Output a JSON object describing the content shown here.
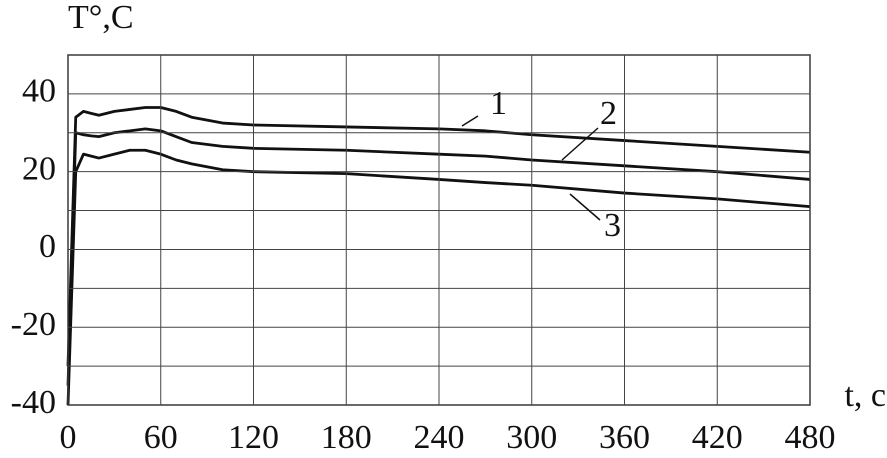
{
  "chart_data": {
    "type": "line",
    "ylabel": "T°,C",
    "xlabel": "t, c",
    "x": [
      0,
      5,
      10,
      15,
      20,
      30,
      40,
      50,
      60,
      70,
      80,
      100,
      120,
      180,
      240,
      270,
      300,
      360,
      420,
      480
    ],
    "series": [
      {
        "name": "1",
        "color": "#111111",
        "values": [
          -30,
          34,
          35.5,
          35,
          34.5,
          35.5,
          36,
          36.5,
          36.5,
          35.5,
          34,
          32.5,
          32,
          31.5,
          31,
          30.5,
          29.5,
          28,
          26.5,
          25
        ]
      },
      {
        "name": "2",
        "color": "#111111",
        "values": [
          -35,
          30,
          29.5,
          29.2,
          29,
          30,
          30.5,
          31,
          30.5,
          29,
          27.5,
          26.5,
          26,
          25.5,
          24.5,
          24,
          23,
          21.5,
          20,
          18
        ]
      },
      {
        "name": "3",
        "color": "#111111",
        "values": [
          -40,
          20,
          24.5,
          24,
          23.5,
          24.5,
          25.5,
          25.5,
          24.5,
          23,
          22,
          20.5,
          20,
          19.5,
          18,
          17.2,
          16.5,
          14.5,
          13,
          11
        ]
      }
    ],
    "xlim": [
      0,
      480
    ],
    "xticks": [
      0,
      60,
      120,
      180,
      240,
      300,
      360,
      420,
      480
    ],
    "ylim": [
      -40,
      50
    ],
    "yticks": [
      -40,
      -20,
      0,
      20,
      40
    ],
    "yminor": [
      -30,
      -10,
      10,
      30,
      50
    ],
    "grid": true
  }
}
